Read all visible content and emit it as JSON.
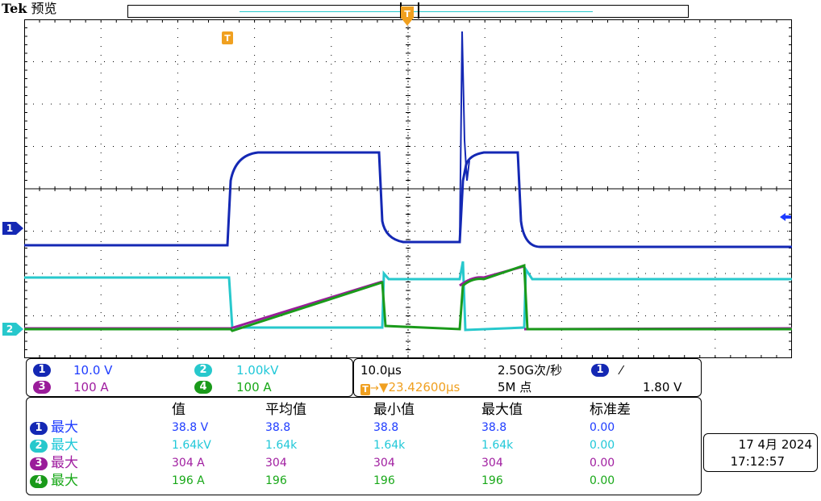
{
  "header": {
    "brand": "Tek",
    "mode": "预览"
  },
  "colors": {
    "ch1": "#1428b4",
    "ch2": "#27c8cc",
    "ch3": "#9a1c9a",
    "ch4": "#1a9a1a",
    "trigger": "#f0a020",
    "ch1_text": "#1e3cff",
    "ch2_text": "#20c8d8",
    "ch3_text": "#a01ea0",
    "ch4_text": "#18a818"
  },
  "markers": {
    "trigger": "T",
    "ch1": "1",
    "ch2": "2"
  },
  "channels": [
    {
      "id": "1",
      "scale": "10.0 V"
    },
    {
      "id": "2",
      "scale": "1.00kV"
    },
    {
      "id": "3",
      "scale": "100 A"
    },
    {
      "id": "4",
      "scale": "100 A"
    }
  ],
  "acquisition": {
    "time_per_div": "10.0µs",
    "sample_rate": "2.50G次/秒",
    "trigger_channel": "1",
    "trigger_slope": "⁄",
    "trigger_position": "▼23.42600µs",
    "record_length": "5M 点",
    "trigger_level": "1.80 V"
  },
  "measurements": {
    "headers": [
      "值",
      "平均值",
      "最小值",
      "最大值",
      "标准差"
    ],
    "rows": [
      {
        "ch": "1",
        "type": "最大",
        "value": "38.8 V",
        "mean": "38.8",
        "min": "38.8",
        "max": "38.8",
        "std": "0.00"
      },
      {
        "ch": "2",
        "type": "最大",
        "value": "1.64kV",
        "mean": "1.64k",
        "min": "1.64k",
        "max": "1.64k",
        "std": "0.00"
      },
      {
        "ch": "3",
        "type": "最大",
        "value": "304 A",
        "mean": "304",
        "min": "304",
        "max": "304",
        "std": "0.00"
      },
      {
        "ch": "4",
        "type": "最大",
        "value": "196 A",
        "mean": "196",
        "min": "196",
        "max": "196",
        "std": "0.00"
      }
    ]
  },
  "clock": {
    "date": "17 4月 2024",
    "time": "17:12:57"
  }
}
